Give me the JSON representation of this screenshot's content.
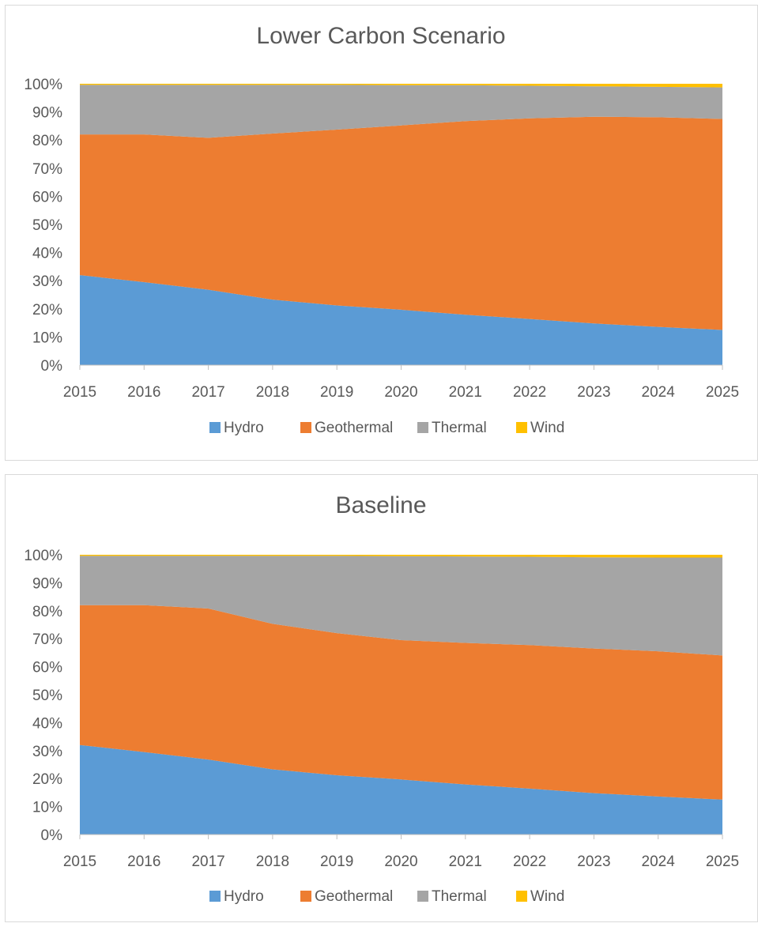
{
  "chart_data": [
    {
      "type": "area",
      "stacked": true,
      "percent": true,
      "title": "Lower Carbon Scenario",
      "xlabel": "",
      "ylabel": "",
      "x": [
        "2015",
        "2016",
        "2017",
        "2018",
        "2019",
        "2020",
        "2021",
        "2022",
        "2023",
        "2024",
        "2025"
      ],
      "ylim": [
        0,
        100
      ],
      "yticks": [
        "0%",
        "10%",
        "20%",
        "30%",
        "40%",
        "50%",
        "60%",
        "70%",
        "80%",
        "90%",
        "100%"
      ],
      "legend_position": "bottom",
      "series": [
        {
          "name": "Hydro",
          "color": "#5b9bd5",
          "values": [
            32.0,
            29.5,
            26.8,
            23.3,
            21.2,
            19.7,
            17.9,
            16.4,
            14.8,
            13.6,
            12.5
          ]
        },
        {
          "name": "Geothermal",
          "color": "#ed7d31",
          "values": [
            50.0,
            52.5,
            54.0,
            59.0,
            62.5,
            65.5,
            68.8,
            71.3,
            73.5,
            74.5,
            75.0
          ]
        },
        {
          "name": "Thermal",
          "color": "#a5a5a5",
          "values": [
            17.6,
            17.6,
            18.8,
            17.3,
            15.9,
            14.3,
            12.8,
            11.6,
            10.8,
            10.8,
            11.2
          ]
        },
        {
          "name": "Wind",
          "color": "#ffc000",
          "values": [
            0.4,
            0.4,
            0.4,
            0.4,
            0.4,
            0.5,
            0.5,
            0.7,
            0.9,
            1.1,
            1.3
          ]
        }
      ]
    },
    {
      "type": "area",
      "stacked": true,
      "percent": true,
      "title": "Baseline",
      "xlabel": "",
      "ylabel": "",
      "x": [
        "2015",
        "2016",
        "2017",
        "2018",
        "2019",
        "2020",
        "2021",
        "2022",
        "2023",
        "2024",
        "2025"
      ],
      "ylim": [
        0,
        100
      ],
      "yticks": [
        "0%",
        "10%",
        "20%",
        "30%",
        "40%",
        "50%",
        "60%",
        "70%",
        "80%",
        "90%",
        "100%"
      ],
      "legend_position": "bottom",
      "series": [
        {
          "name": "Hydro",
          "color": "#5b9bd5",
          "values": [
            32.0,
            29.5,
            26.8,
            23.3,
            21.2,
            19.7,
            17.9,
            16.4,
            14.8,
            13.6,
            12.5
          ]
        },
        {
          "name": "Geothermal",
          "color": "#ed7d31",
          "values": [
            50.0,
            52.5,
            54.0,
            52.0,
            50.8,
            49.8,
            50.6,
            51.3,
            51.7,
            51.9,
            51.5
          ]
        },
        {
          "name": "Thermal",
          "color": "#a5a5a5",
          "values": [
            17.6,
            17.6,
            18.8,
            24.3,
            27.6,
            30.0,
            30.9,
            31.6,
            32.6,
            33.5,
            35.0
          ]
        },
        {
          "name": "Wind",
          "color": "#ffc000",
          "values": [
            0.4,
            0.4,
            0.4,
            0.4,
            0.4,
            0.5,
            0.6,
            0.7,
            0.9,
            1.0,
            1.0
          ]
        }
      ]
    }
  ]
}
